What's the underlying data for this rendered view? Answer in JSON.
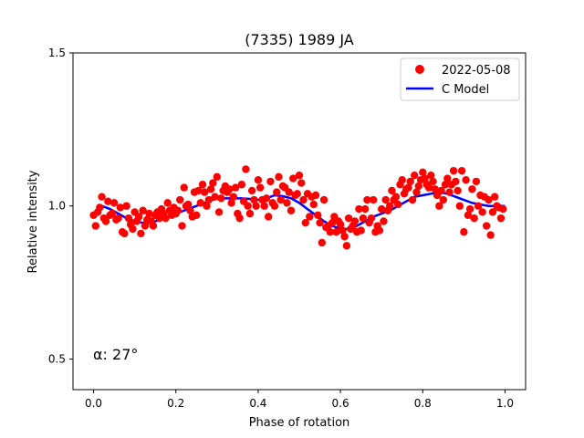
{
  "chart_data": {
    "type": "scatter",
    "title": "(7335) 1989 JA",
    "xlabel": "Phase of rotation",
    "ylabel": "Relative intensity",
    "xlim": [
      -0.05,
      1.05
    ],
    "ylim": [
      0.4,
      1.5
    ],
    "xticks": [
      0.0,
      0.2,
      0.4,
      0.6,
      0.8,
      1.0
    ],
    "xtick_labels": [
      "0.0",
      "0.2",
      "0.4",
      "0.6",
      "0.8",
      "1.0"
    ],
    "yticks": [
      0.5,
      1.0,
      1.5
    ],
    "ytick_labels": [
      "0.5",
      "1.0",
      "1.5"
    ],
    "grid": false,
    "legend_position": "top-right",
    "annotation": "α: 27°",
    "series": [
      {
        "name": "2022-05-08",
        "kind": "scatter",
        "color": "#ff0000",
        "marker": "circle",
        "points": [
          [
            0.0,
            0.97
          ],
          [
            0.005,
            0.935
          ],
          [
            0.01,
            0.98
          ],
          [
            0.015,
            0.995
          ],
          [
            0.02,
            1.03
          ],
          [
            0.025,
            0.96
          ],
          [
            0.03,
            0.95
          ],
          [
            0.035,
            1.015
          ],
          [
            0.04,
            0.97
          ],
          [
            0.045,
            0.975
          ],
          [
            0.05,
            1.01
          ],
          [
            0.055,
            0.955
          ],
          [
            0.06,
            0.96
          ],
          [
            0.065,
            0.995
          ],
          [
            0.07,
            0.915
          ],
          [
            0.075,
            0.91
          ],
          [
            0.08,
            1.0
          ],
          [
            0.085,
            0.96
          ],
          [
            0.09,
            0.94
          ],
          [
            0.095,
            0.925
          ],
          [
            0.1,
            0.98
          ],
          [
            0.105,
            0.95
          ],
          [
            0.11,
            0.965
          ],
          [
            0.115,
            0.91
          ],
          [
            0.12,
            0.985
          ],
          [
            0.125,
            0.935
          ],
          [
            0.13,
            0.955
          ],
          [
            0.135,
            0.975
          ],
          [
            0.14,
            0.95
          ],
          [
            0.145,
            0.935
          ],
          [
            0.15,
            0.97
          ],
          [
            0.155,
            0.98
          ],
          [
            0.16,
            0.96
          ],
          [
            0.165,
            0.99
          ],
          [
            0.17,
            0.975
          ],
          [
            0.175,
            0.96
          ],
          [
            0.18,
            1.01
          ],
          [
            0.185,
            0.985
          ],
          [
            0.19,
            0.97
          ],
          [
            0.195,
            0.995
          ],
          [
            0.2,
            0.975
          ],
          [
            0.205,
            0.985
          ],
          [
            0.21,
            1.02
          ],
          [
            0.215,
            0.935
          ],
          [
            0.22,
            1.06
          ],
          [
            0.225,
            1.0
          ],
          [
            0.23,
            1.005
          ],
          [
            0.235,
            0.985
          ],
          [
            0.24,
            0.965
          ],
          [
            0.245,
            1.045
          ],
          [
            0.25,
            0.97
          ],
          [
            0.255,
            1.05
          ],
          [
            0.26,
            1.01
          ],
          [
            0.265,
            1.07
          ],
          [
            0.27,
            1.045
          ],
          [
            0.275,
            1.0
          ],
          [
            0.28,
            1.02
          ],
          [
            0.285,
            1.055
          ],
          [
            0.29,
            1.075
          ],
          [
            0.295,
            1.03
          ],
          [
            0.3,
            1.095
          ],
          [
            0.305,
            0.98
          ],
          [
            0.31,
            1.025
          ],
          [
            0.315,
            1.05
          ],
          [
            0.32,
            1.065
          ],
          [
            0.325,
            1.045
          ],
          [
            0.33,
            1.055
          ],
          [
            0.335,
            1.01
          ],
          [
            0.34,
            1.03
          ],
          [
            0.345,
            1.06
          ],
          [
            0.35,
            0.975
          ],
          [
            0.355,
            0.96
          ],
          [
            0.36,
            1.07
          ],
          [
            0.365,
            1.015
          ],
          [
            0.37,
            1.12
          ],
          [
            0.375,
            1.0
          ],
          [
            0.38,
            0.975
          ],
          [
            0.385,
            1.05
          ],
          [
            0.39,
            1.02
          ],
          [
            0.395,
            1.0
          ],
          [
            0.4,
            1.085
          ],
          [
            0.405,
            1.06
          ],
          [
            0.41,
            1.02
          ],
          [
            0.415,
            1.0
          ],
          [
            0.42,
            1.025
          ],
          [
            0.425,
            0.965
          ],
          [
            0.43,
            1.08
          ],
          [
            0.435,
            1.01
          ],
          [
            0.44,
            1.0
          ],
          [
            0.445,
            1.045
          ],
          [
            0.45,
            1.095
          ],
          [
            0.455,
            1.02
          ],
          [
            0.46,
            1.065
          ],
          [
            0.465,
            1.06
          ],
          [
            0.47,
            1.01
          ],
          [
            0.475,
            1.045
          ],
          [
            0.48,
            0.985
          ],
          [
            0.485,
            1.09
          ],
          [
            0.49,
            1.035
          ],
          [
            0.495,
            1.04
          ],
          [
            0.5,
            1.1
          ],
          [
            0.505,
            1.075
          ],
          [
            0.51,
            1.02
          ],
          [
            0.515,
            0.945
          ],
          [
            0.52,
            1.04
          ],
          [
            0.525,
            0.965
          ],
          [
            0.53,
            1.03
          ],
          [
            0.535,
            1.005
          ],
          [
            0.54,
            1.035
          ],
          [
            0.545,
            0.97
          ],
          [
            0.55,
            0.945
          ],
          [
            0.555,
            0.88
          ],
          [
            0.56,
            1.02
          ],
          [
            0.565,
            0.93
          ],
          [
            0.57,
            0.935
          ],
          [
            0.575,
            0.915
          ],
          [
            0.58,
            0.945
          ],
          [
            0.585,
            0.965
          ],
          [
            0.59,
            0.915
          ],
          [
            0.595,
            0.95
          ],
          [
            0.6,
            0.94
          ],
          [
            0.605,
            0.92
          ],
          [
            0.61,
            0.9
          ],
          [
            0.615,
            0.87
          ],
          [
            0.62,
            0.96
          ],
          [
            0.625,
            0.925
          ],
          [
            0.63,
            0.935
          ],
          [
            0.635,
            0.95
          ],
          [
            0.64,
            0.915
          ],
          [
            0.645,
            0.99
          ],
          [
            0.65,
            0.92
          ],
          [
            0.655,
            0.96
          ],
          [
            0.66,
            0.99
          ],
          [
            0.665,
            1.02
          ],
          [
            0.67,
            0.945
          ],
          [
            0.675,
            0.96
          ],
          [
            0.68,
            1.02
          ],
          [
            0.685,
            0.915
          ],
          [
            0.69,
            0.935
          ],
          [
            0.695,
            0.92
          ],
          [
            0.7,
            0.99
          ],
          [
            0.705,
            0.95
          ],
          [
            0.71,
            1.02
          ],
          [
            0.715,
            0.985
          ],
          [
            0.72,
            1.0
          ],
          [
            0.725,
            1.05
          ],
          [
            0.73,
            1.02
          ],
          [
            0.735,
            1.03
          ],
          [
            0.74,
            1.005
          ],
          [
            0.745,
            1.07
          ],
          [
            0.75,
            1.085
          ],
          [
            0.755,
            1.04
          ],
          [
            0.76,
            1.055
          ],
          [
            0.765,
            1.06
          ],
          [
            0.77,
            1.08
          ],
          [
            0.775,
            1.02
          ],
          [
            0.78,
            1.1
          ],
          [
            0.785,
            1.045
          ],
          [
            0.79,
            1.065
          ],
          [
            0.795,
            1.085
          ],
          [
            0.8,
            1.11
          ],
          [
            0.805,
            1.09
          ],
          [
            0.81,
            1.07
          ],
          [
            0.815,
            1.06
          ],
          [
            0.82,
            1.1
          ],
          [
            0.825,
            1.08
          ],
          [
            0.83,
            1.055
          ],
          [
            0.835,
            1.035
          ],
          [
            0.84,
            1.0
          ],
          [
            0.845,
            1.05
          ],
          [
            0.85,
            1.02
          ],
          [
            0.855,
            1.07
          ],
          [
            0.86,
            1.09
          ],
          [
            0.865,
            1.045
          ],
          [
            0.87,
            1.07
          ],
          [
            0.875,
            1.115
          ],
          [
            0.88,
            1.08
          ],
          [
            0.885,
            1.05
          ],
          [
            0.89,
            1.0
          ],
          [
            0.895,
            1.115
          ],
          [
            0.9,
            0.915
          ],
          [
            0.905,
            1.085
          ],
          [
            0.91,
            0.97
          ],
          [
            0.915,
            0.99
          ],
          [
            0.92,
            1.055
          ],
          [
            0.925,
            0.96
          ],
          [
            0.93,
            1.08
          ],
          [
            0.935,
            1.0
          ],
          [
            0.94,
            1.035
          ],
          [
            0.945,
            0.98
          ],
          [
            0.95,
            1.03
          ],
          [
            0.955,
            0.935
          ],
          [
            0.96,
            1.02
          ],
          [
            0.965,
            0.905
          ],
          [
            0.97,
            0.98
          ],
          [
            0.975,
            1.03
          ],
          [
            0.98,
            1.0
          ],
          [
            0.985,
            0.995
          ],
          [
            0.99,
            0.96
          ],
          [
            0.995,
            0.99
          ]
        ]
      },
      {
        "name": "C Model",
        "kind": "line",
        "color": "#0000ff",
        "points": [
          [
            0.02,
            1.0
          ],
          [
            0.04,
            0.99
          ],
          [
            0.06,
            0.975
          ],
          [
            0.08,
            0.96
          ],
          [
            0.1,
            0.95
          ],
          [
            0.12,
            0.945
          ],
          [
            0.14,
            0.945
          ],
          [
            0.16,
            0.955
          ],
          [
            0.18,
            0.965
          ],
          [
            0.2,
            0.975
          ],
          [
            0.22,
            0.985
          ],
          [
            0.24,
            0.995
          ],
          [
            0.26,
            1.005
          ],
          [
            0.28,
            1.015
          ],
          [
            0.3,
            1.025
          ],
          [
            0.32,
            1.025
          ],
          [
            0.34,
            1.025
          ],
          [
            0.36,
            1.025
          ],
          [
            0.38,
            1.023
          ],
          [
            0.4,
            1.02
          ],
          [
            0.42,
            1.025
          ],
          [
            0.44,
            1.035
          ],
          [
            0.46,
            1.032
          ],
          [
            0.48,
            1.025
          ],
          [
            0.5,
            1.01
          ],
          [
            0.52,
            0.99
          ],
          [
            0.54,
            0.97
          ],
          [
            0.56,
            0.95
          ],
          [
            0.58,
            0.935
          ],
          [
            0.6,
            0.925
          ],
          [
            0.62,
            0.925
          ],
          [
            0.64,
            0.935
          ],
          [
            0.66,
            0.95
          ],
          [
            0.68,
            0.965
          ],
          [
            0.7,
            0.975
          ],
          [
            0.72,
            0.985
          ],
          [
            0.74,
            1.0
          ],
          [
            0.76,
            1.015
          ],
          [
            0.78,
            1.03
          ],
          [
            0.8,
            1.035
          ],
          [
            0.82,
            1.04
          ],
          [
            0.84,
            1.045
          ],
          [
            0.86,
            1.04
          ],
          [
            0.88,
            1.03
          ],
          [
            0.9,
            1.02
          ],
          [
            0.92,
            1.01
          ],
          [
            0.94,
            1.005
          ],
          [
            0.96,
            1.0
          ],
          [
            0.98,
            1.0
          ],
          [
            1.0,
            1.0
          ]
        ]
      }
    ]
  }
}
